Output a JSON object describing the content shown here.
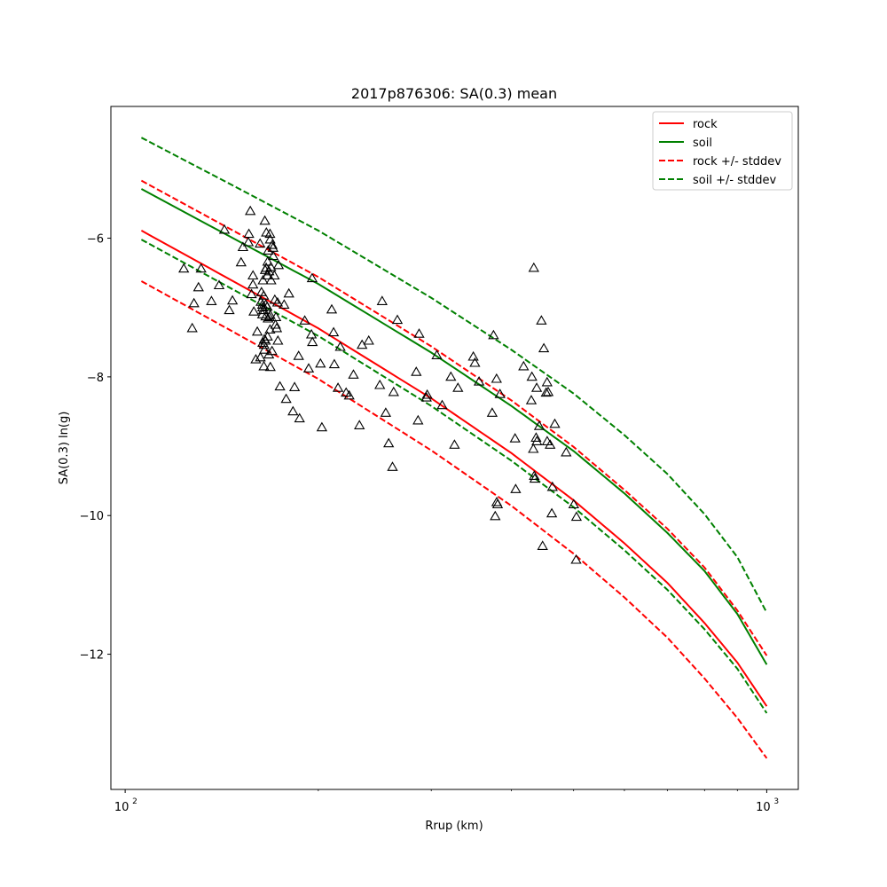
{
  "chart_data": {
    "type": "scatter",
    "title": "2017p876306: SA(0.3) mean",
    "xlabel": "Rrup (km)",
    "ylabel": "SA(0.3) ln(g)",
    "x_scale": "log",
    "xlim": [
      95,
      1120
    ],
    "ylim": [
      -13.95,
      -4.1
    ],
    "x_ticks": [
      {
        "value": 100,
        "base": "10",
        "exp": "2"
      },
      {
        "value": 1000,
        "base": "10",
        "exp": "3"
      }
    ],
    "y_ticks": [
      {
        "value": -6,
        "label": "−6"
      },
      {
        "value": -8,
        "label": "−8"
      },
      {
        "value": -10,
        "label": "−10"
      },
      {
        "value": -12,
        "label": "−12"
      }
    ],
    "grid": false,
    "legend_position": "top-right",
    "series": [
      {
        "name": "rock",
        "color": "#ff0000",
        "dash": "solid",
        "x": [
          106,
          150,
          200,
          300,
          400,
          500,
          600,
          700,
          800,
          900,
          1000
        ],
        "y": [
          -5.89,
          -6.66,
          -7.3,
          -8.31,
          -9.1,
          -9.78,
          -10.4,
          -10.97,
          -11.55,
          -12.12,
          -12.75
        ]
      },
      {
        "name": "soil",
        "color": "#008000",
        "dash": "solid",
        "x": [
          106,
          150,
          200,
          300,
          400,
          500,
          600,
          700,
          800,
          900,
          1000
        ],
        "y": [
          -5.29,
          -6.04,
          -6.66,
          -7.65,
          -8.42,
          -9.07,
          -9.68,
          -10.25,
          -10.8,
          -11.42,
          -12.15
        ]
      },
      {
        "name": "rock +/- stddev",
        "color": "#ff0000",
        "dash": "dashed",
        "x": [
          106,
          150,
          200,
          300,
          400,
          500,
          600,
          700,
          800,
          900,
          1000
        ],
        "y": [
          -5.17,
          -5.93,
          -6.56,
          -7.56,
          -8.34,
          -9.01,
          -9.63,
          -10.19,
          -10.75,
          -11.37,
          -12.02
        ]
      },
      {
        "name": "",
        "color": "#ff0000",
        "dash": "dashed",
        "x": [
          106,
          150,
          200,
          300,
          400,
          500,
          600,
          700,
          800,
          900,
          1000
        ],
        "y": [
          -6.62,
          -7.39,
          -8.03,
          -9.06,
          -9.86,
          -10.55,
          -11.18,
          -11.76,
          -12.35,
          -12.92,
          -13.5
        ]
      },
      {
        "name": "soil +/- stddev",
        "color": "#008000",
        "dash": "dashed",
        "x": [
          106,
          150,
          200,
          300,
          400,
          500,
          600,
          700,
          800,
          900,
          1000
        ],
        "y": [
          -4.55,
          -5.28,
          -5.89,
          -6.86,
          -7.61,
          -8.24,
          -8.84,
          -9.4,
          -9.98,
          -10.6,
          -11.4
        ]
      },
      {
        "name": "",
        "color": "#008000",
        "dash": "dashed",
        "x": [
          106,
          150,
          200,
          300,
          400,
          500,
          600,
          700,
          800,
          900,
          1000
        ],
        "y": [
          -6.02,
          -6.78,
          -7.41,
          -8.42,
          -9.21,
          -9.88,
          -10.5,
          -11.07,
          -11.64,
          -12.21,
          -12.85
        ]
      }
    ],
    "observations": {
      "marker": "triangle",
      "points": [
        [
          123.4,
          -6.45
        ],
        [
          127.2,
          -7.31
        ],
        [
          128.0,
          -6.95
        ],
        [
          130.1,
          -6.72
        ],
        [
          131.3,
          -6.45
        ],
        [
          136.3,
          -6.92
        ],
        [
          140.1,
          -6.69
        ],
        [
          142.8,
          -5.89
        ],
        [
          145.3,
          -7.05
        ],
        [
          147.0,
          -6.91
        ],
        [
          151.6,
          -6.36
        ],
        [
          152.6,
          -6.14
        ],
        [
          155.6,
          -6.07
        ],
        [
          155.9,
          -5.95
        ],
        [
          156.7,
          -5.62
        ],
        [
          157.4,
          -6.82
        ],
        [
          158.2,
          -6.55
        ],
        [
          158.2,
          -6.68
        ],
        [
          158.7,
          -7.07
        ],
        [
          159.8,
          -7.76
        ],
        [
          160.7,
          -7.36
        ],
        [
          162.3,
          -6.09
        ],
        [
          162.5,
          -7.73
        ],
        [
          162.8,
          -6.93
        ],
        [
          163.1,
          -6.79
        ],
        [
          163.7,
          -7.11
        ],
        [
          163.7,
          -6.97
        ],
        [
          163.8,
          -7.01
        ],
        [
          163.9,
          -7.52
        ],
        [
          164.0,
          -6.62
        ],
        [
          164.2,
          -7.05
        ],
        [
          164.4,
          -6.84
        ],
        [
          164.5,
          -7.86
        ],
        [
          164.7,
          -7.55
        ],
        [
          164.8,
          -7.47
        ],
        [
          164.9,
          -7.62
        ],
        [
          165.1,
          -5.76
        ],
        [
          165.3,
          -6.47
        ],
        [
          165.5,
          -7.49
        ],
        [
          165.6,
          -7.14
        ],
        [
          165.6,
          -6.97
        ],
        [
          165.9,
          -6.44
        ],
        [
          166.0,
          -5.93
        ],
        [
          166.5,
          -7.0
        ],
        [
          166.5,
          -6.55
        ],
        [
          166.7,
          -7.43
        ],
        [
          166.8,
          -6.35
        ],
        [
          167.0,
          -7.17
        ],
        [
          167.1,
          -6.19
        ],
        [
          167.5,
          -7.69
        ],
        [
          167.6,
          -6.49
        ],
        [
          167.8,
          -7.15
        ],
        [
          168.2,
          -5.95
        ],
        [
          168.2,
          -7.33
        ],
        [
          168.3,
          -6.03
        ],
        [
          168.3,
          -7.12
        ],
        [
          168.4,
          -7.87
        ],
        [
          168.7,
          -6.43
        ],
        [
          168.8,
          -6.62
        ],
        [
          169.4,
          -7.64
        ],
        [
          169.5,
          -6.11
        ],
        [
          170.0,
          -6.15
        ],
        [
          170.1,
          -6.27
        ],
        [
          170.8,
          -6.55
        ],
        [
          171.1,
          -6.9
        ],
        [
          171.5,
          -7.26
        ],
        [
          171.8,
          -7.15
        ],
        [
          172.3,
          -7.31
        ],
        [
          172.8,
          -6.94
        ],
        [
          173.0,
          -7.49
        ],
        [
          173.4,
          -6.4
        ],
        [
          174.3,
          -8.15
        ],
        [
          176.9,
          -6.97
        ],
        [
          178.2,
          -8.33
        ],
        [
          180.0,
          -6.81
        ],
        [
          182.6,
          -8.51
        ],
        [
          183.7,
          -8.16
        ],
        [
          186.4,
          -7.71
        ],
        [
          187.0,
          -8.61
        ],
        [
          190.5,
          -7.2
        ],
        [
          193.2,
          -7.89
        ],
        [
          195.1,
          -7.4
        ],
        [
          195.6,
          -6.59
        ],
        [
          195.8,
          -7.51
        ],
        [
          201.6,
          -7.82
        ],
        [
          202.6,
          -8.74
        ],
        [
          209.9,
          -7.04
        ],
        [
          211.3,
          -7.37
        ],
        [
          211.8,
          -7.83
        ],
        [
          214.7,
          -8.17
        ],
        [
          216.4,
          -7.58
        ],
        [
          221.0,
          -8.24
        ],
        [
          223.5,
          -8.28
        ],
        [
          226.9,
          -7.98
        ],
        [
          231.8,
          -8.71
        ],
        [
          234.0,
          -7.55
        ],
        [
          239.7,
          -7.49
        ],
        [
          249.4,
          -8.13
        ],
        [
          251.5,
          -6.92
        ],
        [
          254.8,
          -8.53
        ],
        [
          257.5,
          -8.97
        ],
        [
          261.0,
          -9.31
        ],
        [
          262.1,
          -8.23
        ],
        [
          265.6,
          -7.19
        ],
        [
          284.3,
          -7.94
        ],
        [
          286.1,
          -8.64
        ],
        [
          287.2,
          -7.39
        ],
        [
          294.9,
          -8.31
        ],
        [
          295.6,
          -8.27
        ],
        [
          306.1,
          -7.7
        ],
        [
          312.0,
          -8.42
        ],
        [
          321.9,
          -8.01
        ],
        [
          326.1,
          -8.99
        ],
        [
          330.2,
          -8.17
        ],
        [
          348.9,
          -7.72
        ],
        [
          350.9,
          -7.81
        ],
        [
          356.2,
          -8.08
        ],
        [
          373.3,
          -8.53
        ],
        [
          375.1,
          -7.41
        ],
        [
          377.4,
          -10.02
        ],
        [
          379.2,
          -8.04
        ],
        [
          379.4,
          -9.82
        ],
        [
          380.6,
          -9.85
        ],
        [
          383.9,
          -8.26
        ],
        [
          405.3,
          -8.9
        ],
        [
          406.2,
          -9.63
        ],
        [
          417.8,
          -7.86
        ],
        [
          429.6,
          -8.35
        ],
        [
          430.6,
          -8.01
        ],
        [
          432.7,
          -9.05
        ],
        [
          433.5,
          -6.44
        ],
        [
          434.1,
          -9.44
        ],
        [
          434.9,
          -9.48
        ],
        [
          437.1,
          -8.89
        ],
        [
          438.0,
          -8.17
        ],
        [
          438.3,
          -8.94
        ],
        [
          442.1,
          -8.72
        ],
        [
          445.5,
          -7.2
        ],
        [
          447.3,
          -10.45
        ],
        [
          449.3,
          -7.6
        ],
        [
          453.1,
          -8.24
        ],
        [
          454.6,
          -8.09
        ],
        [
          454.8,
          -8.94
        ],
        [
          456.4,
          -8.23
        ],
        [
          459.6,
          -8.99
        ],
        [
          462.4,
          -9.98
        ],
        [
          463.4,
          -9.6
        ],
        [
          467.4,
          -8.69
        ],
        [
          486.8,
          -9.1
        ],
        [
          500.2,
          -9.85
        ],
        [
          504.5,
          -10.65
        ],
        [
          505.2,
          -10.03
        ]
      ]
    }
  }
}
